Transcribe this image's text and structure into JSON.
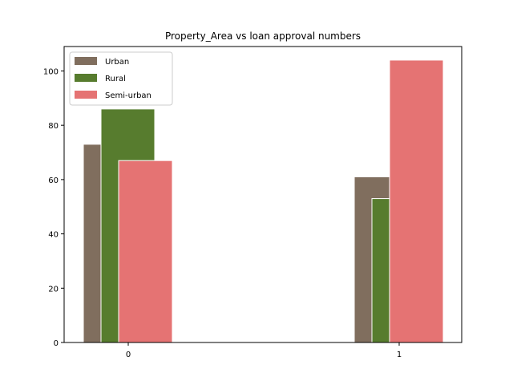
{
  "chart_data": {
    "type": "bar",
    "title": "Property_Area vs loan approval numbers",
    "xlabel": "",
    "ylabel": "",
    "categories": [
      "0",
      "1"
    ],
    "series": [
      {
        "name": "Urban",
        "values": [
          73,
          61
        ],
        "color": "#806e5e"
      },
      {
        "name": "Rural",
        "values": [
          86,
          53
        ],
        "color": "#577c2e"
      },
      {
        "name": "Semi-urban",
        "values": [
          67,
          104
        ],
        "color": "#e57373"
      }
    ],
    "ylim": [
      0,
      109
    ],
    "yticks": [
      0,
      20,
      40,
      60,
      80,
      100
    ],
    "grid": false,
    "legend": {
      "placement": "top-left"
    },
    "bar_edge_color": "#ffffff"
  }
}
